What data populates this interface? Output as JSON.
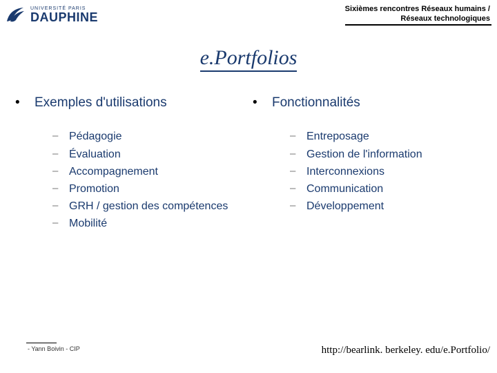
{
  "header": {
    "logo": {
      "university_line": "UNIVERSITÉ PARIS",
      "name": "DAUPHINE",
      "icon_fill": "#1a3a6e"
    },
    "event": {
      "line1": "Sixièmes rencontres Réseaux humains /",
      "line2": "Réseaux technologiques"
    }
  },
  "title": "e.Portfolios",
  "colors": {
    "brand": "#1a3a6e",
    "dash": "#777777",
    "text_black": "#000000"
  },
  "columns": {
    "left": {
      "heading": "Exemples d'utilisations",
      "items": [
        "Pédagogie",
        "Évaluation",
        "Accompagnement",
        "Promotion",
        "GRH / gestion des compétences",
        "Mobilité"
      ]
    },
    "right": {
      "heading": "Fonctionnalités",
      "items": [
        "Entreposage",
        "Gestion de l'information",
        "Interconnexions",
        "Communication",
        "Développement"
      ]
    }
  },
  "footer": {
    "credit": "- Yann Boivin - CIP",
    "url": "http://bearlink. berkeley. edu/e.Portfolio/"
  }
}
